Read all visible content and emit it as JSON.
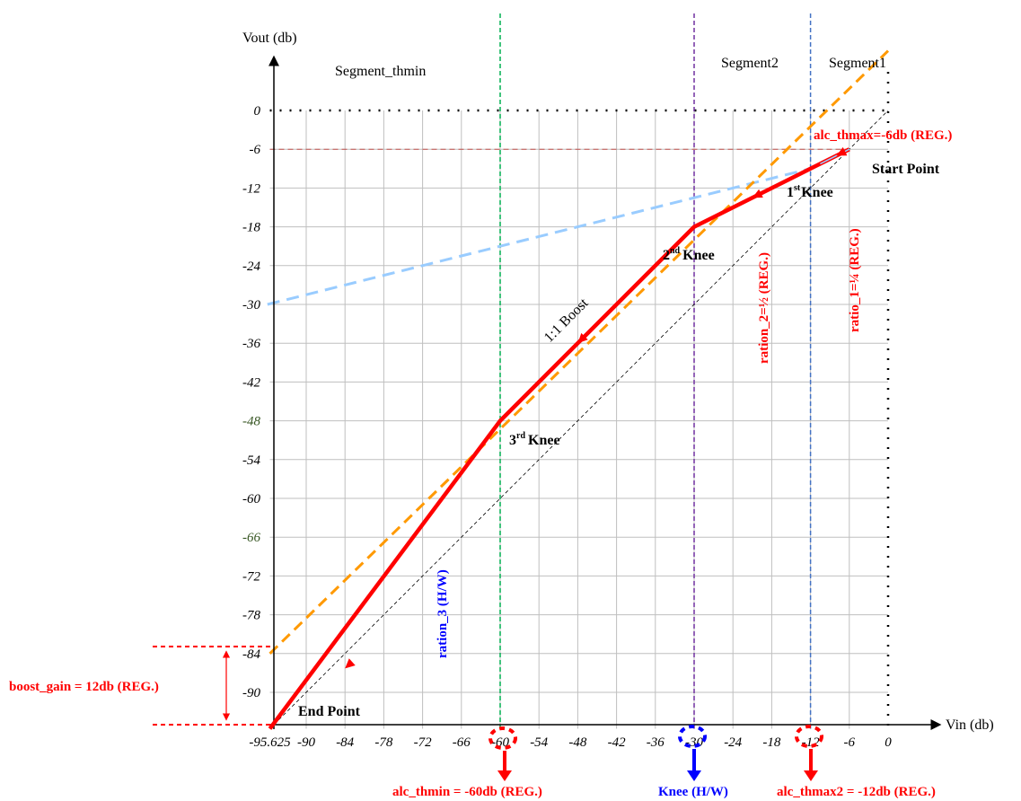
{
  "colors": {
    "grid": "#bfbfbf",
    "curve": "#ff0000",
    "boost_line": "#ff9900",
    "light_blue_line": "#99ccff",
    "thmin_line": "#00b050",
    "knee_line": "#7030a0",
    "thmax2_line": "#4472c4",
    "threshold_line": "#c0504d",
    "label_red": "#ff0000",
    "label_blue": "#0000ff",
    "tick_green": "#375623"
  },
  "axes": {
    "y_title": "Vout (db)",
    "x_title": "Vin (db)",
    "x_ticks": [
      "-95.625",
      "-90",
      "-84",
      "-78",
      "-72",
      "-66",
      "-60",
      "-54",
      "-48",
      "-42",
      "-36",
      "-30",
      "-24",
      "-18",
      "-12",
      "-6",
      "0"
    ],
    "y_ticks": [
      "0",
      "-6",
      "-12",
      "-18",
      "-24",
      "-30",
      "-36",
      "-42",
      "-48",
      "-54",
      "-60",
      "-66",
      "-72",
      "-78",
      "-84",
      "-90"
    ],
    "green_y_ticks": [
      "-48",
      "-66"
    ]
  },
  "segments": {
    "thmin": "Segment_thmin",
    "seg2": "Segment2",
    "seg1": "Segment1"
  },
  "labels": {
    "start_point": "Start Point",
    "end_point": "End Point",
    "knee1_num": "1",
    "knee1_sup": "st",
    "knee2_num": "2",
    "knee2_sup": "nd",
    "knee3_num": "3",
    "knee3_sup": "rd",
    "knee_word": "Knee",
    "boost_1to1": "1:1 Boost",
    "alc_thmax": "alc_thmax=-6db (REG.)",
    "ratio_1": "ratio_1=¼ (REG.)",
    "ration_2": "ration_2=½ (REG.)",
    "ration_3": "ration_3 (H/W)",
    "boost_gain": "boost_gain = 12db (REG.)",
    "alc_thmin": "alc_thmin = -60db (REG.)",
    "knee_hw": "Knee (H/W)",
    "alc_thmax2": "alc_thmax2 = -12db (REG.)"
  },
  "chart_data": {
    "type": "line",
    "xlabel": "Vin (db)",
    "ylabel": "Vout (db)",
    "xlim": [
      -95.625,
      0
    ],
    "ylim": [
      -95.625,
      0
    ],
    "grid": true,
    "series": [
      {
        "points": [
          [
            -95.625,
            -95.625
          ],
          [
            -60,
            -48
          ],
          [
            -30,
            -18
          ],
          [
            -12,
            -9
          ],
          [
            -6,
            -6
          ]
        ]
      }
    ],
    "reference_lines": {
      "boost_line": [
        [
          -95.625,
          -84
        ],
        [
          0,
          12
        ]
      ],
      "unity_line": [
        [
          -95.625,
          -95.625
        ],
        [
          0,
          0
        ]
      ],
      "light_blue_line": [
        [
          -96,
          -30
        ],
        [
          -12,
          -9
        ]
      ],
      "thmax_level": -6,
      "vertical_lines": [
        -60,
        -30,
        -12,
        0
      ],
      "zero_level": 0
    }
  }
}
